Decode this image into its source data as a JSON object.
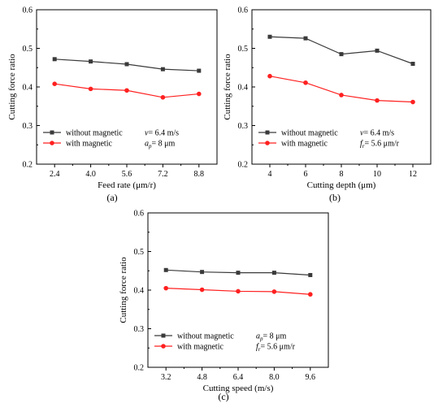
{
  "chart_data": [
    {
      "type": "line",
      "panel_label": "(a)",
      "xlabel": "Feed rate (μm/r)",
      "ylabel": "Cutting force ratio",
      "x": [
        2.4,
        4.0,
        5.6,
        7.2,
        8.8
      ],
      "xticks": [
        "2.4",
        "4.0",
        "5.6",
        "7.2",
        "8.8"
      ],
      "xlim": [
        1.6,
        9.6
      ],
      "ylim": [
        0.2,
        0.6
      ],
      "yticks": [
        "0.2",
        "0.3",
        "0.4",
        "0.5",
        "0.6"
      ],
      "series": [
        {
          "name": "without magnetic",
          "color": "#3a3a3a",
          "marker": "square",
          "values": [
            0.472,
            0.466,
            0.459,
            0.446,
            0.442
          ]
        },
        {
          "name": "with magnetic",
          "color": "#ff2020",
          "marker": "circle",
          "values": [
            0.408,
            0.395,
            0.391,
            0.373,
            0.382
          ]
        }
      ],
      "annotations": [
        {
          "pre": "",
          "sym": "v",
          "sub": "",
          "post": "= 6.4 m/s"
        },
        {
          "pre": "",
          "sym": "a",
          "sub": "p",
          "post": "= 8 μm"
        }
      ],
      "legend_position": "bottom-left",
      "grid": false
    },
    {
      "type": "line",
      "panel_label": "(b)",
      "xlabel": "Cutting depth (μm)",
      "ylabel": "Cutting force ratio",
      "x": [
        4,
        6,
        8,
        10,
        12
      ],
      "xticks": [
        "4",
        "6",
        "8",
        "10",
        "12"
      ],
      "xlim": [
        3,
        13
      ],
      "ylim": [
        0.2,
        0.6
      ],
      "yticks": [
        "0.2",
        "0.3",
        "0.4",
        "0.5",
        "0.6"
      ],
      "series": [
        {
          "name": "without magnetic",
          "color": "#3a3a3a",
          "marker": "square",
          "values": [
            0.53,
            0.526,
            0.485,
            0.494,
            0.46
          ]
        },
        {
          "name": "with magnetic",
          "color": "#ff2020",
          "marker": "circle",
          "values": [
            0.428,
            0.411,
            0.379,
            0.365,
            0.361
          ]
        }
      ],
      "annotations": [
        {
          "pre": "",
          "sym": "v",
          "sub": "",
          "post": "= 6.4 m/s"
        },
        {
          "pre": "",
          "sym": "f",
          "sub": "r",
          "post": "= 5.6 μm/r"
        }
      ],
      "legend_position": "bottom-left",
      "grid": false
    },
    {
      "type": "line",
      "panel_label": "(c)",
      "xlabel": "Cutting speed (m/s)",
      "ylabel": "Cutting force ratio",
      "x": [
        3.2,
        4.8,
        6.4,
        8.0,
        9.6
      ],
      "xticks": [
        "3.2",
        "4.8",
        "6.4",
        "8.0",
        "9.6"
      ],
      "xlim": [
        2.4,
        10.4
      ],
      "ylim": [
        0.2,
        0.6
      ],
      "yticks": [
        "0.2",
        "0.3",
        "0.4",
        "0.5",
        "0.6"
      ],
      "series": [
        {
          "name": "without magnetic",
          "color": "#3a3a3a",
          "marker": "square",
          "values": [
            0.452,
            0.447,
            0.445,
            0.445,
            0.439
          ]
        },
        {
          "name": "with magnetic",
          "color": "#ff2020",
          "marker": "circle",
          "values": [
            0.405,
            0.401,
            0.397,
            0.396,
            0.389
          ]
        }
      ],
      "annotations": [
        {
          "pre": "",
          "sym": "a",
          "sub": "p",
          "post": "= 8 μm"
        },
        {
          "pre": "",
          "sym": "f",
          "sub": "r",
          "post": "= 5.6 μm/r"
        }
      ],
      "legend_position": "bottom-left",
      "grid": false
    }
  ]
}
